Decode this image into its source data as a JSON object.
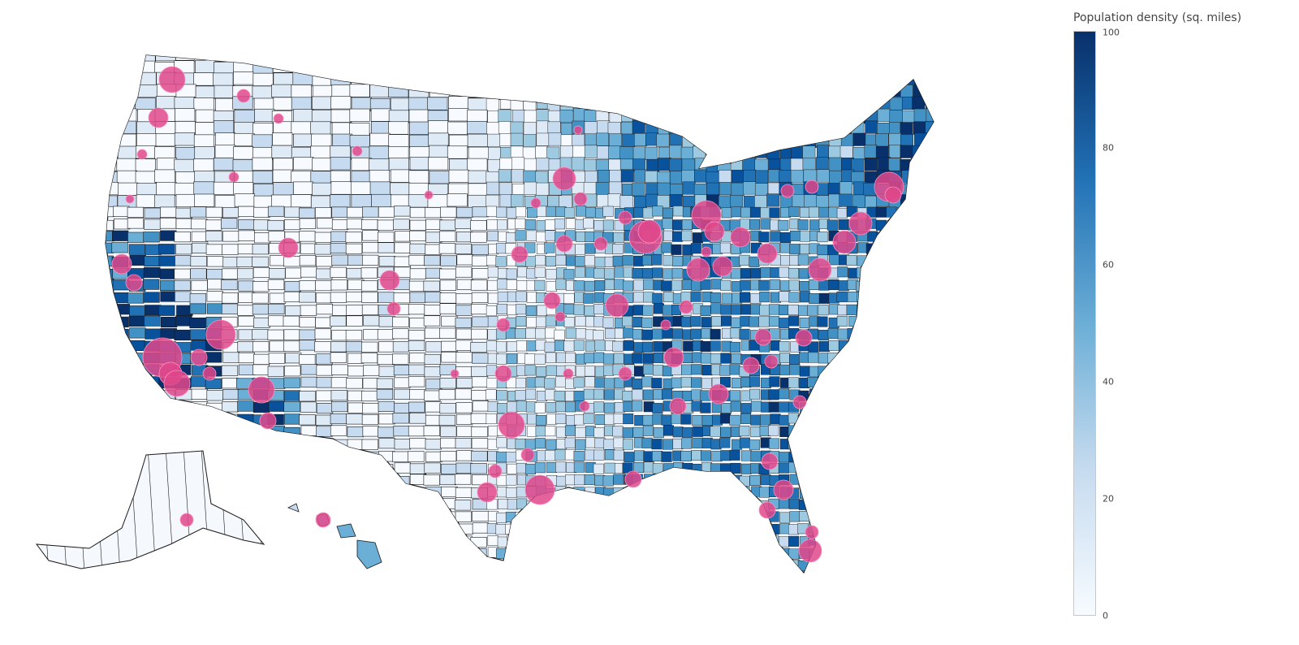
{
  "colorbar": {
    "title": "Population density (sq. miles)",
    "min": 0,
    "max": 100,
    "ticks": [
      "0",
      "20",
      "40",
      "60",
      "80",
      "100"
    ],
    "colors": [
      "#f7fbff",
      "#c6dbef",
      "#6baed6",
      "#2171b5",
      "#08306b"
    ]
  },
  "map": {
    "type": "choropleth-with-bubbles",
    "region": "United States counties",
    "fill_colors": [
      "#f7fbff",
      "#deebf7",
      "#c6dbef",
      "#9ecae1",
      "#6baed6",
      "#4292c6",
      "#2171b5",
      "#08519c",
      "#08306b"
    ],
    "border_color": "#1a1a1a",
    "bubble_color": "#e0488b",
    "bubble_opacity": 0.85
  }
}
